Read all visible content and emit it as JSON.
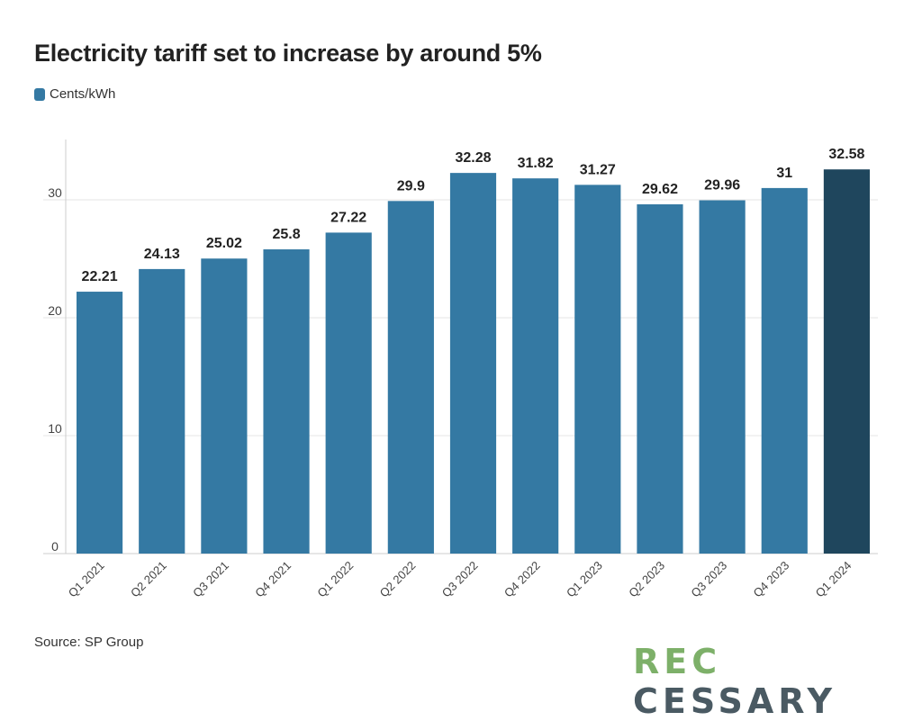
{
  "title": "Electricity tariff set to increase by around 5%",
  "legend": {
    "label": "Cents/kWh"
  },
  "source": "Source: SP Group",
  "logo": {
    "part1": "REC",
    "part2": "CESSARY",
    "color1": "#7db069",
    "color2": "#4a5a63"
  },
  "colors": {
    "bar": "#3479a3",
    "highlight": "#1f465d",
    "grid": "#e6e6e6",
    "axis": "#cccccc"
  },
  "chart_data": {
    "type": "bar",
    "categories": [
      "Q1 2021",
      "Q2 2021",
      "Q3 2021",
      "Q4 2021",
      "Q1 2022",
      "Q2 2022",
      "Q3 2022",
      "Q4 2022",
      "Q1 2023",
      "Q2 2023",
      "Q3 2023",
      "Q4 2023",
      "Q1 2024"
    ],
    "series": [
      {
        "name": "Cents/kWh",
        "values": [
          22.21,
          24.13,
          25.02,
          25.8,
          27.22,
          29.9,
          32.28,
          31.82,
          31.27,
          29.62,
          29.96,
          31,
          32.58
        ],
        "labels": [
          "22.21",
          "24.13",
          "25.02",
          "25.8",
          "27.22",
          "29.9",
          "32.28",
          "31.82",
          "31.27",
          "29.62",
          "29.96",
          "31",
          "32.58"
        ]
      }
    ],
    "highlight_index": 12,
    "yticks": [
      0,
      10,
      20,
      30
    ],
    "ylim": [
      0,
      35
    ],
    "grid": true
  }
}
